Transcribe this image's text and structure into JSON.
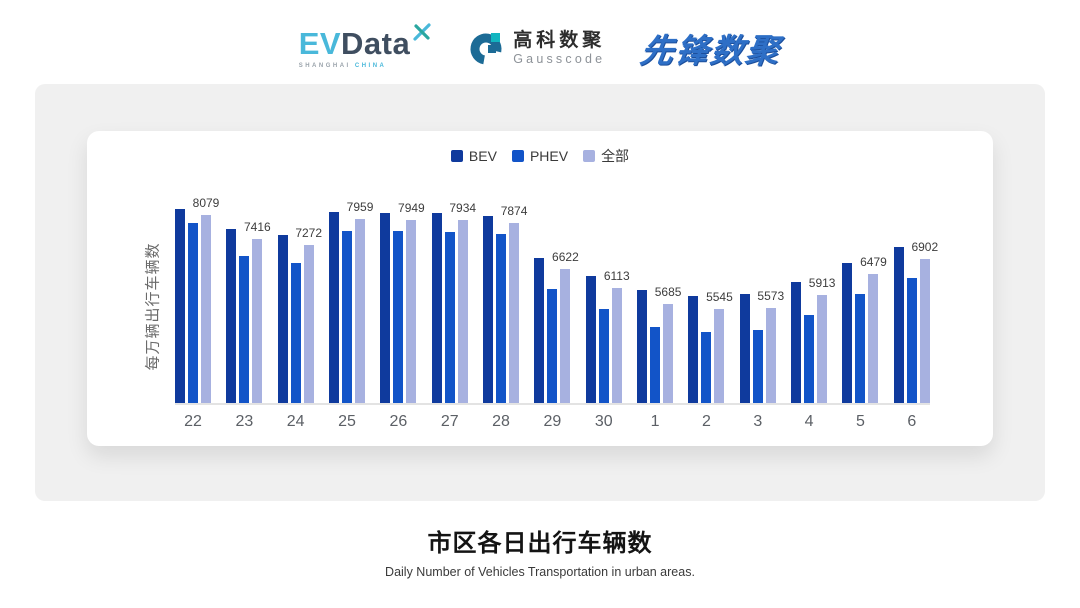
{
  "header": {
    "logos": {
      "evdata": {
        "ev": "EV",
        "data": "Data",
        "sub_left": "SHANGHAI",
        "sub_right": "CHINA"
      },
      "gausscode": {
        "cn": "高科数聚",
        "en": "Gausscode"
      },
      "xianfeng": {
        "cn": "先锋数聚"
      }
    }
  },
  "chart_data": {
    "type": "bar",
    "title": "市区各日出行车辆数",
    "subtitle": "Daily Number of Vehicles Transportation in urban areas.",
    "ylabel": "每万辆出行车辆数",
    "categories": [
      "22",
      "23",
      "24",
      "25",
      "26",
      "27",
      "28",
      "29",
      "30",
      "1",
      "2",
      "3",
      "4",
      "5",
      "6"
    ],
    "series": [
      {
        "name": "BEV",
        "color": "#0F3A9D",
        "values": [
          8250,
          7690,
          7550,
          8160,
          8130,
          8120,
          8040,
          6910,
          6440,
          6060,
          5900,
          5950,
          6270,
          6790,
          7210
        ]
      },
      {
        "name": "PHEV",
        "color": "#1254C8",
        "values": [
          7860,
          6980,
          6780,
          7640,
          7640,
          7610,
          7570,
          6080,
          5530,
          5050,
          4930,
          4960,
          5370,
          5950,
          6380
        ]
      },
      {
        "name": "全部",
        "color": "#A7B1E0",
        "values": [
          8079,
          7416,
          7272,
          7959,
          7949,
          7934,
          7874,
          6622,
          6113,
          5685,
          5545,
          5573,
          5913,
          6479,
          6902
        ]
      }
    ],
    "data_labels": [
      8079,
      7416,
      7272,
      7959,
      7949,
      7934,
      7874,
      6622,
      6113,
      5685,
      5545,
      5573,
      5913,
      6479,
      6902
    ],
    "labeled_series": "全部",
    "axis": {
      "y_min": 3000,
      "y_max": 8400,
      "grid": false,
      "legend_position": "top"
    },
    "colors": {
      "axis_line": "#e3e3e3",
      "tick_text": "#5c6066",
      "label_text": "#3d3d3d"
    }
  },
  "footer": {
    "title": "市区各日出行车辆数",
    "subtitle": "Daily Number of Vehicles Transportation in urban areas."
  }
}
